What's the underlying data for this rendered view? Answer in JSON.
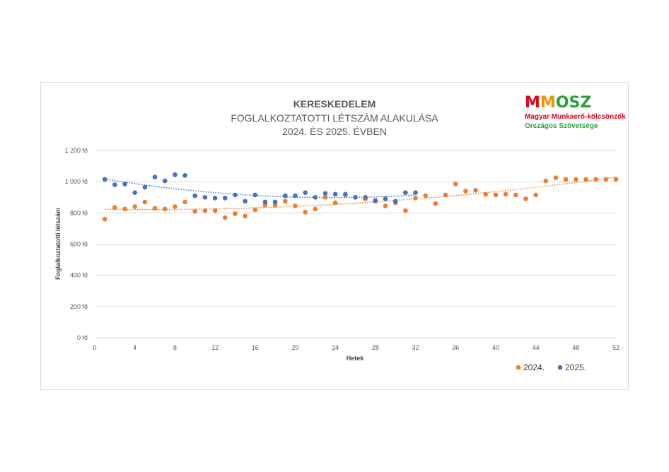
{
  "chart_data": {
    "type": "scatter",
    "title": "KERESKEDELEM",
    "subtitle_lines": [
      "FOGLALKOZTATOTTI LÉTSZÁM ALAKULÁSA",
      "2024. ÉS 2025. ÉVBEN"
    ],
    "xlabel": "Hetek",
    "ylabel": "Foglalkoztatotti létszám",
    "xlim": [
      0,
      52
    ],
    "ylim": [
      0,
      1200
    ],
    "x_ticks": [
      0,
      4,
      8,
      12,
      16,
      20,
      24,
      28,
      32,
      36,
      40,
      44,
      48,
      52
    ],
    "y_ticks": [
      0,
      200,
      400,
      600,
      800,
      1000,
      1200
    ],
    "y_tick_labels": [
      "0 fő",
      "200 fő",
      "400 fő",
      "600 fő",
      "800 fő",
      "1 000 fő",
      "1 200 fő"
    ],
    "grid": "horizontal",
    "legend_position": "bottom-right",
    "series": [
      {
        "name": "2024.",
        "color": "#ed7d31",
        "trendline": "polynomial",
        "points": [
          [
            1,
            760
          ],
          [
            2,
            835
          ],
          [
            3,
            825
          ],
          [
            4,
            840
          ],
          [
            5,
            870
          ],
          [
            6,
            830
          ],
          [
            7,
            825
          ],
          [
            8,
            840
          ],
          [
            9,
            870
          ],
          [
            10,
            810
          ],
          [
            11,
            815
          ],
          [
            12,
            815
          ],
          [
            13,
            770
          ],
          [
            14,
            795
          ],
          [
            15,
            780
          ],
          [
            16,
            820
          ],
          [
            17,
            850
          ],
          [
            18,
            850
          ],
          [
            19,
            875
          ],
          [
            20,
            845
          ],
          [
            21,
            805
          ],
          [
            22,
            825
          ],
          [
            23,
            900
          ],
          [
            24,
            865
          ],
          [
            25,
            915
          ],
          [
            26,
            900
          ],
          [
            27,
            890
          ],
          [
            28,
            875
          ],
          [
            29,
            845
          ],
          [
            30,
            865
          ],
          [
            31,
            815
          ],
          [
            32,
            895
          ],
          [
            33,
            910
          ],
          [
            34,
            860
          ],
          [
            35,
            915
          ],
          [
            36,
            985
          ],
          [
            37,
            940
          ],
          [
            38,
            945
          ],
          [
            39,
            920
          ],
          [
            40,
            915
          ],
          [
            41,
            920
          ],
          [
            42,
            915
          ],
          [
            43,
            890
          ],
          [
            44,
            915
          ],
          [
            45,
            1005
          ],
          [
            46,
            1025
          ],
          [
            47,
            1015
          ],
          [
            48,
            1015
          ],
          [
            49,
            1015
          ],
          [
            50,
            1015
          ],
          [
            51,
            1015
          ],
          [
            52,
            1015
          ]
        ]
      },
      {
        "name": "2025.",
        "color": "#4472c4",
        "trendline": "polynomial",
        "points": [
          [
            1,
            1015
          ],
          [
            2,
            980
          ],
          [
            3,
            985
          ],
          [
            4,
            930
          ],
          [
            5,
            965
          ],
          [
            6,
            1030
          ],
          [
            7,
            1005
          ],
          [
            8,
            1045
          ],
          [
            9,
            1040
          ],
          [
            10,
            910
          ],
          [
            11,
            900
          ],
          [
            12,
            895
          ],
          [
            13,
            895
          ],
          [
            14,
            915
          ],
          [
            15,
            875
          ],
          [
            16,
            915
          ],
          [
            17,
            870
          ],
          [
            18,
            870
          ],
          [
            19,
            910
          ],
          [
            20,
            910
          ],
          [
            21,
            930
          ],
          [
            22,
            900
          ],
          [
            23,
            925
          ],
          [
            24,
            920
          ],
          [
            25,
            920
          ],
          [
            26,
            900
          ],
          [
            27,
            900
          ],
          [
            28,
            880
          ],
          [
            29,
            890
          ],
          [
            30,
            875
          ],
          [
            31,
            930
          ],
          [
            32,
            930
          ]
        ]
      }
    ]
  },
  "logo": {
    "mark_m1": "M",
    "mark_m2": "M",
    "mark_rest": "OSZ",
    "line1": "Magyar Munkaerő-kölcsönzők",
    "line2": "Országos Szövetsége"
  }
}
